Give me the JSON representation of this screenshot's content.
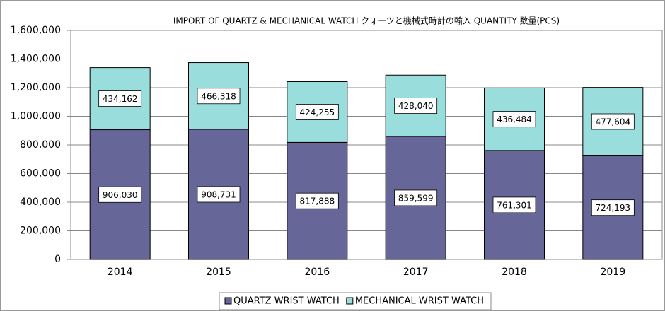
{
  "chart_data": {
    "type": "stacked_bar",
    "title": "IMPORT OF QUARTZ & MECHANICAL WATCH クォーツと機械式時計の輸入 QUANTITY 数量(PCS)",
    "categories": [
      "2014",
      "2015",
      "2016",
      "2017",
      "2018",
      "2019"
    ],
    "series": [
      {
        "name": "QUARTZ WRIST WATCH",
        "color": "#666699",
        "values": [
          906030,
          908731,
          817888,
          859599,
          761301,
          724193
        ],
        "value_labels": [
          "906,030",
          "908,731",
          "817,888",
          "859,599",
          "761,301",
          "724,193"
        ]
      },
      {
        "name": "MECHANICAL WRIST WATCH",
        "color": "#99dddd",
        "values": [
          434162,
          466318,
          424255,
          428040,
          436484,
          477604
        ],
        "value_labels": [
          "434,162",
          "466,318",
          "424,255",
          "428,040",
          "436,484",
          "477,604"
        ]
      }
    ],
    "ylim": [
      0,
      1600000
    ],
    "yticks": [
      0,
      {
        "value": 200000,
        "label": "200,000"
      },
      {
        "value": 400000,
        "label": "400,000"
      },
      {
        "value": 600000,
        "label": "600,000"
      },
      {
        "value": 800000,
        "label": "800,000"
      },
      {
        "value": 1000000,
        "label": "1,000,000"
      },
      {
        "value": 1200000,
        "label": "1,200,000"
      },
      {
        "value": 1400000,
        "label": "1,400,000"
      },
      {
        "value": 1600000,
        "label": "1,600,000"
      }
    ],
    "grid": true,
    "legend": "bottom"
  }
}
